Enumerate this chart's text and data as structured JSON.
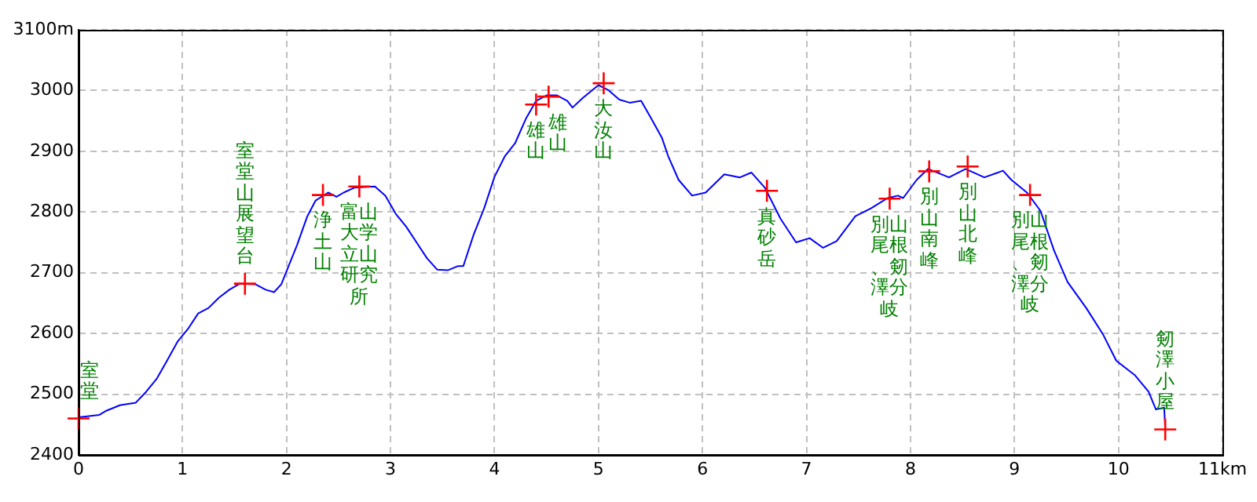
{
  "chart_data": {
    "type": "line",
    "xlim": [
      0,
      11
    ],
    "ylim": [
      2400,
      3100
    ],
    "xticks": [
      0,
      1,
      2,
      3,
      4,
      5,
      6,
      7,
      8,
      9,
      10,
      {
        "value": 11,
        "label": "11km"
      }
    ],
    "yticks": [
      2400,
      2500,
      2600,
      2700,
      2800,
      2900,
      3000,
      {
        "value": 3100,
        "label": "3100m"
      }
    ],
    "grid": true,
    "legend": false,
    "series": [
      {
        "type": "line",
        "color": "#0000ff",
        "marker": "none",
        "line_style": "solid",
        "x": [
          0,
          0.2,
          0.27,
          0.4,
          0.55,
          0.65,
          0.75,
          0.85,
          0.95,
          1.05,
          1.15,
          1.25,
          1.35,
          1.45,
          1.55,
          1.7,
          1.8,
          1.88,
          1.95,
          2.02,
          2.1,
          2.2,
          2.28,
          2.4,
          2.48,
          2.55,
          2.65,
          2.85,
          2.95,
          3.05,
          3.15,
          3.25,
          3.35,
          3.45,
          3.55,
          3.65,
          3.7,
          3.8,
          3.9,
          4.0,
          4.1,
          4.2,
          4.3,
          4.4,
          4.5,
          4.6,
          4.7,
          4.75,
          4.85,
          5.0,
          5.1,
          5.2,
          5.3,
          5.41,
          5.51,
          5.61,
          5.67,
          5.77,
          5.9,
          6.03,
          6.21,
          6.36,
          6.47,
          6.6,
          6.75,
          6.9,
          7.03,
          7.16,
          7.29,
          7.47,
          7.62,
          7.78,
          7.88,
          7.93,
          8.06,
          8.17,
          8.37,
          8.53,
          8.71,
          8.89,
          8.97,
          9.12,
          9.25,
          9.38,
          9.51,
          9.69,
          9.85,
          9.98,
          10.16,
          10.29,
          10.36,
          10.44,
          10.45
        ],
        "values": [
          2462,
          2466,
          2473,
          2482,
          2486,
          2504,
          2525,
          2555,
          2586,
          2607,
          2633,
          2642,
          2659,
          2672,
          2682,
          2681,
          2672,
          2668,
          2681,
          2711,
          2745,
          2793,
          2819,
          2832,
          2825,
          2832,
          2840,
          2842,
          2827,
          2797,
          2776,
          2750,
          2724,
          2705,
          2704,
          2711,
          2711,
          2763,
          2806,
          2858,
          2892,
          2914,
          2953,
          2983,
          2992,
          2992,
          2983,
          2972,
          2988,
          3009,
          3000,
          2985,
          2980,
          2983,
          2953,
          2922,
          2892,
          2853,
          2827,
          2832,
          2862,
          2857,
          2865,
          2840,
          2789,
          2750,
          2757,
          2741,
          2752,
          2793,
          2806,
          2823,
          2827,
          2823,
          2853,
          2871,
          2857,
          2871,
          2857,
          2868,
          2853,
          2832,
          2802,
          2737,
          2685,
          2642,
          2599,
          2555,
          2531,
          2504,
          2475,
          2478,
          2443
        ]
      },
      {
        "type": "scatter",
        "color": "#ff0000",
        "marker": "cross",
        "x": [
          0,
          1.6,
          2.35,
          2.7,
          4.4,
          4.52,
          5.05,
          6.62,
          7.8,
          8.18,
          8.55,
          9.15,
          10.45
        ],
        "values": [
          2460,
          2682,
          2828,
          2842,
          2977,
          2990,
          3012,
          2835,
          2822,
          2867,
          2875,
          2828,
          2442
        ]
      }
    ],
    "annotations": [
      {
        "text": "室堂",
        "x": 0,
        "y": 2460
      },
      {
        "text": "室堂山展望台",
        "x": 1.6,
        "y": 2682
      },
      {
        "text": "浄土山",
        "x": 2.35,
        "y": 2828
      },
      {
        "text": "富山大学立山研究所",
        "x": 2.7,
        "y": 2842
      },
      {
        "text": "雄山",
        "x": 4.4,
        "y": 2977
      },
      {
        "text": "雄山",
        "x": 4.52,
        "y": 2990
      },
      {
        "text": "大汝山",
        "x": 5.05,
        "y": 3012
      },
      {
        "text": "真砂岳",
        "x": 6.62,
        "y": 2835
      },
      {
        "text": "別山尾根、剱澤分岐",
        "x": 7.8,
        "y": 2822
      },
      {
        "text": "別山南峰",
        "x": 8.18,
        "y": 2867
      },
      {
        "text": "別山北峰",
        "x": 8.55,
        "y": 2875
      },
      {
        "text": "別山尾根、剱澤分岐",
        "x": 9.15,
        "y": 2828
      },
      {
        "text": "剱澤小屋",
        "x": 10.45,
        "y": 2442
      }
    ]
  }
}
